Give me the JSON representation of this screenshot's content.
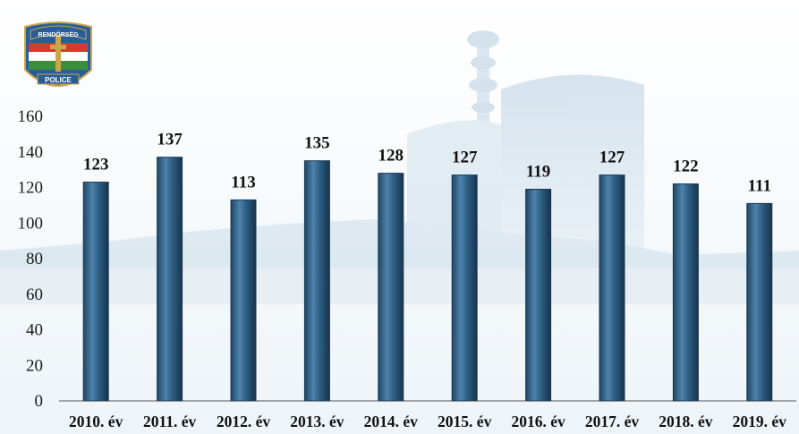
{
  "logo": {
    "top_text": "RENDŐRSÉG",
    "bottom_text": "POLICE"
  },
  "chart_data": {
    "type": "bar",
    "categories": [
      "2010. év",
      "2011. év",
      "2012. év",
      "2013. év",
      "2014. év",
      "2015. év",
      "2016. év",
      "2017. év",
      "2018. év",
      "2019. év"
    ],
    "values": [
      123,
      137,
      113,
      135,
      128,
      127,
      119,
      127,
      122,
      111
    ],
    "title": "",
    "xlabel": "",
    "ylabel": "",
    "ylim": [
      0,
      160
    ],
    "yticks": [
      0,
      20,
      40,
      60,
      80,
      100,
      120,
      140,
      160
    ],
    "grid": false,
    "legend": "none",
    "bar_color": "#2e5f85",
    "bar_highlight": "#5d8fb4",
    "bar_shadow": "#1a3a55"
  }
}
